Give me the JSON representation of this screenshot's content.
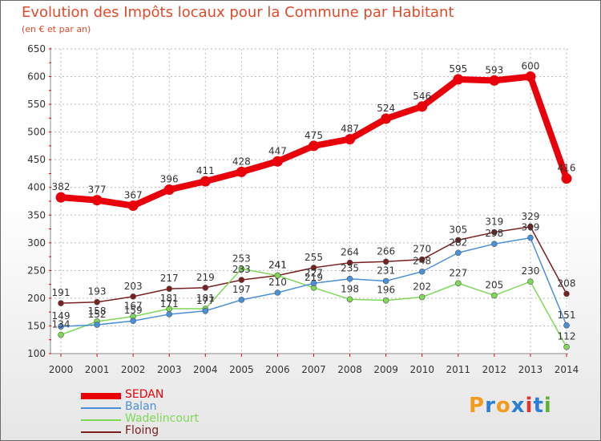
{
  "title": "Evolution des Impôts locaux pour la Commune par Habitant",
  "subtitle": "(en € et par an)",
  "logo": {
    "letters": [
      "P",
      "r",
      "o",
      "x",
      "i",
      "t",
      "i"
    ],
    "colors": [
      "#f39b1f",
      "#2b7fd6",
      "#f39b1f",
      "#2b7fd6",
      "#e2332c",
      "#2b7fd6",
      "#5bb431"
    ]
  },
  "chart_data": {
    "type": "line",
    "title": "Evolution des Impôts locaux pour la Commune par Habitant",
    "subtitle": "(en € et par an)",
    "x": [
      "2000",
      "2001",
      "2002",
      "2003",
      "2004",
      "2005",
      "2006",
      "2007",
      "2008",
      "2009",
      "2010",
      "2011",
      "2012",
      "2013",
      "2014"
    ],
    "ylim": [
      100,
      650
    ],
    "yticks": [
      100,
      150,
      200,
      250,
      300,
      350,
      400,
      450,
      500,
      550,
      600,
      650
    ],
    "grid": true,
    "legend_position": "bottom-left",
    "series": [
      {
        "name": "SEDAN",
        "color": "#e8000b",
        "values": [
          382,
          377,
          367,
          396,
          411,
          428,
          447,
          475,
          487,
          524,
          546,
          595,
          593,
          600,
          416
        ]
      },
      {
        "name": "Balan",
        "color": "#4a90d9",
        "values": [
          149,
          152,
          159,
          171,
          177,
          197,
          210,
          227,
          235,
          231,
          248,
          282,
          298,
          309,
          151
        ]
      },
      {
        "name": "Wadelincourt",
        "color": "#7ed957",
        "values": [
          134,
          158,
          167,
          181,
          181,
          253,
          241,
          219,
          198,
          196,
          202,
          227,
          205,
          230,
          112
        ]
      },
      {
        "name": "Floing",
        "color": "#7a2020",
        "values": [
          191,
          193,
          203,
          217,
          219,
          233,
          241,
          255,
          264,
          266,
          270,
          305,
          319,
          329,
          208
        ]
      }
    ]
  }
}
